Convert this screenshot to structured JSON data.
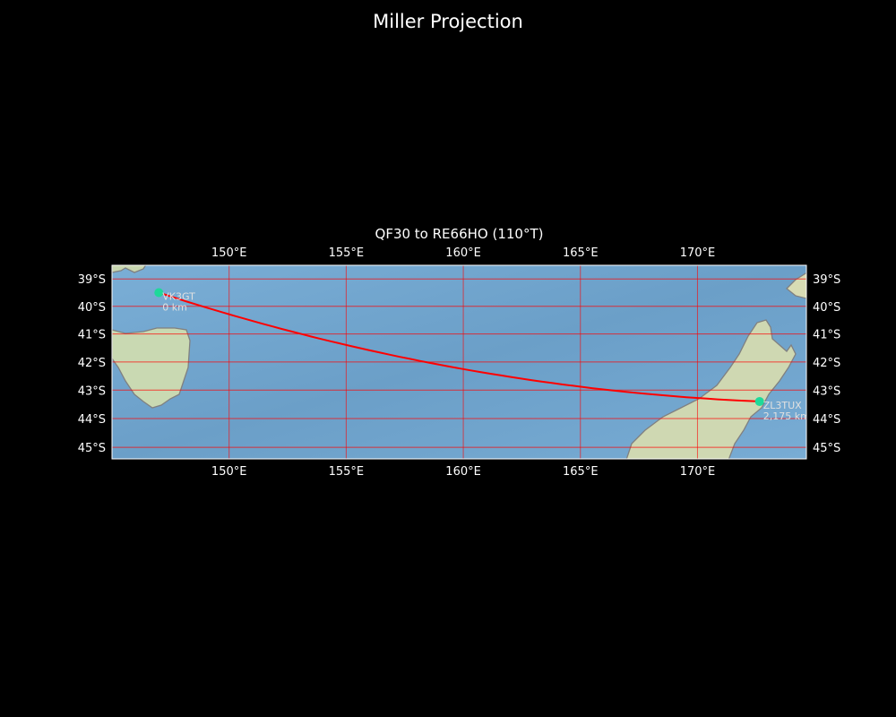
{
  "figure_title": "Miller Projection",
  "map": {
    "title": "QF30 to RE66HO (110°T)",
    "projection": "Miller",
    "extent": {
      "lon": [
        145.0,
        174.65
      ],
      "lat": [
        -38.5,
        -45.4
      ]
    },
    "lon_ticks": [
      {
        "value": 150,
        "label": "150°E"
      },
      {
        "value": 155,
        "label": "155°E"
      },
      {
        "value": 160,
        "label": "160°E"
      },
      {
        "value": 165,
        "label": "165°E"
      },
      {
        "value": 170,
        "label": "170°E"
      }
    ],
    "lat_ticks": [
      {
        "value": -39,
        "label": "39°S"
      },
      {
        "value": -40,
        "label": "40°S"
      },
      {
        "value": -41,
        "label": "41°S"
      },
      {
        "value": -42,
        "label": "42°S"
      },
      {
        "value": -43,
        "label": "43°S"
      },
      {
        "value": -44,
        "label": "44°S"
      },
      {
        "value": -45,
        "label": "45°S"
      }
    ],
    "gridline_color": "#ff0000",
    "path_color": "#ff0000",
    "marker_color": "#1ed99a",
    "stations": [
      {
        "call": "VK3GT",
        "distance": "0 km",
        "lon": 147.0,
        "lat": -39.5
      },
      {
        "call": "ZL3TUX",
        "distance": "2,175 km",
        "lon": 172.65,
        "lat": -43.4
      }
    ]
  }
}
